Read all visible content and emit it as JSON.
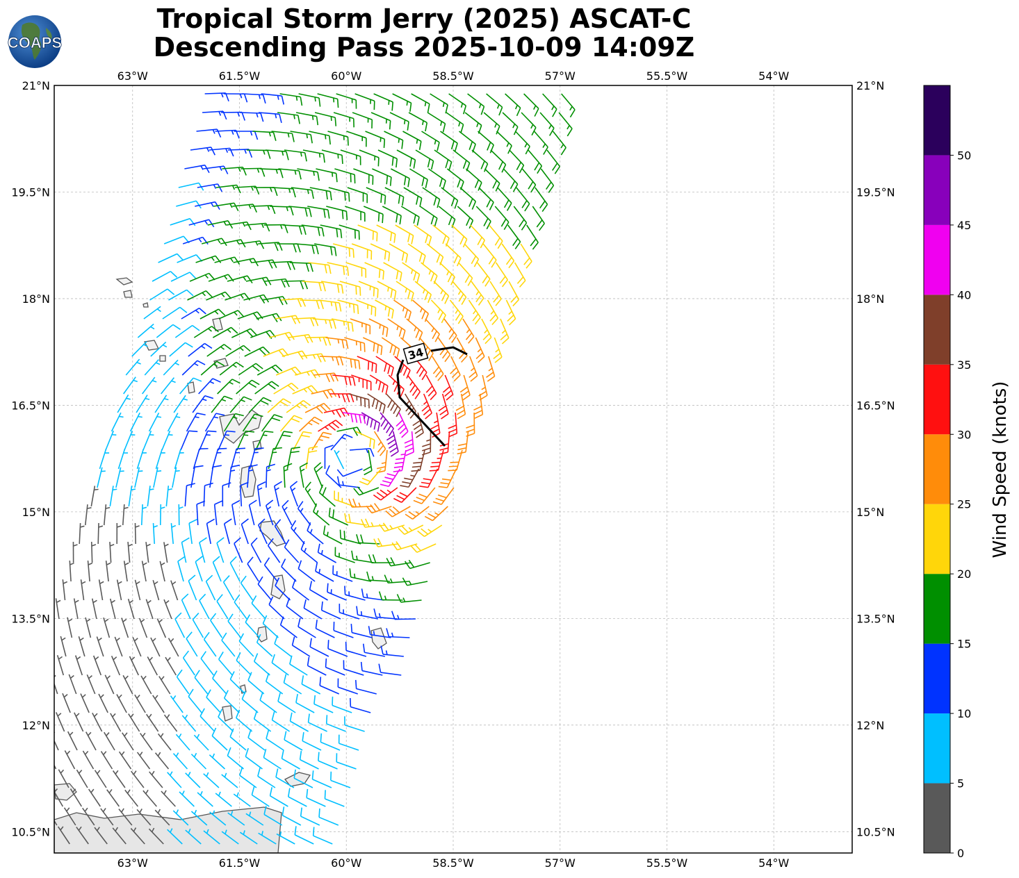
{
  "title_line1": "Tropical Storm Jerry (2025) ASCAT-C",
  "title_line2": "Descending Pass 2025-10-09 14:09Z",
  "logo_text": "COAPS",
  "longitude_ticks": [
    "63°W",
    "61.5°W",
    "60°W",
    "58.5°W",
    "57°W",
    "55.5°W",
    "54°W"
  ],
  "latitude_ticks": [
    "21°N",
    "19.5°N",
    "18°N",
    "16.5°N",
    "15°N",
    "13.5°N",
    "12°N",
    "10.5°N"
  ],
  "contour_label": "34",
  "colorbar": {
    "title": "Wind Speed (knots)",
    "tick_labels": [
      "0",
      "5",
      "10",
      "15",
      "20",
      "25",
      "30",
      "35",
      "40",
      "45",
      "50"
    ],
    "bins": [
      {
        "range": [
          0,
          5
        ],
        "color": "#595959"
      },
      {
        "range": [
          5,
          10
        ],
        "color": "#00bfff"
      },
      {
        "range": [
          10,
          15
        ],
        "color": "#0033ff"
      },
      {
        "range": [
          15,
          20
        ],
        "color": "#008f00"
      },
      {
        "range": [
          20,
          25
        ],
        "color": "#ffd60a"
      },
      {
        "range": [
          25,
          30
        ],
        "color": "#ff8c0a"
      },
      {
        "range": [
          30,
          35
        ],
        "color": "#ff1010"
      },
      {
        "range": [
          35,
          40
        ],
        "color": "#7f3f2a"
      },
      {
        "range": [
          40,
          45
        ],
        "color": "#f000f0"
      },
      {
        "range": [
          45,
          50
        ],
        "color": "#8800bb"
      },
      {
        "range": [
          50,
          55
        ],
        "color": "#2b005c"
      }
    ]
  },
  "map_extent": {
    "lon_min": -64.1,
    "lon_max": -52.9,
    "lat_min": 10.2,
    "lat_max": 21.0
  },
  "storm_center": {
    "lon": -59.9,
    "lat": 15.75
  }
}
